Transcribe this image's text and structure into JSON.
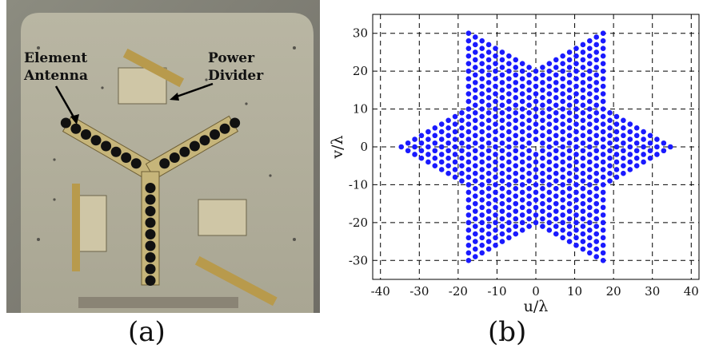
{
  "panel_a": {
    "caption": "(a)",
    "annotations": [
      {
        "id": "element-antenna",
        "lines": [
          "Element",
          "Antenna"
        ]
      },
      {
        "id": "power-divider",
        "lines": [
          "Power",
          "Divider"
        ]
      }
    ]
  },
  "panel_b": {
    "caption": "(b)"
  },
  "chart_data": {
    "type": "scatter",
    "title": "",
    "xlabel": "u/λ",
    "ylabel": "v/λ",
    "xlim": [
      -42,
      42
    ],
    "ylim": [
      -35,
      35
    ],
    "xticks": [
      -40,
      -30,
      -20,
      -10,
      0,
      10,
      20,
      30,
      40
    ],
    "yticks": [
      -30,
      -20,
      -10,
      0,
      10,
      20,
      30
    ],
    "grid": true,
    "grid_style": "dashed",
    "marker_color": "#1a1aff",
    "pattern": "six-pointed star of sampled (u,v) points, three-arm Y array baselines",
    "series": [
      {
        "points": []
      }
    ]
  }
}
